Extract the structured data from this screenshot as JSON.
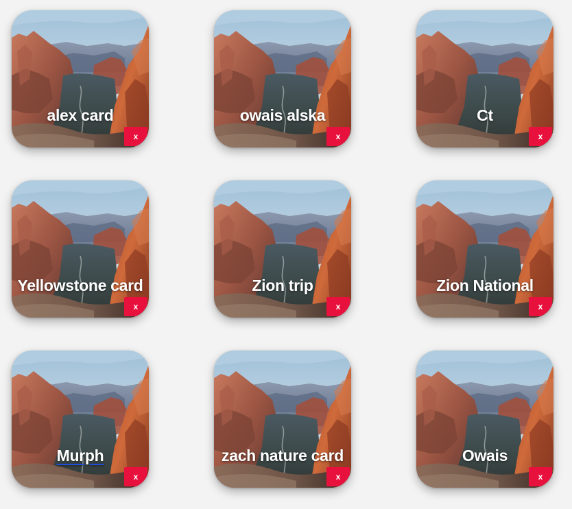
{
  "colors": {
    "background": "#f3f3f3",
    "delete_button": "#e8113d",
    "title_text": "#ffffff",
    "link_underline": "#1f4fd8"
  },
  "cards": [
    {
      "title": "alex card",
      "delete_label": "x",
      "underlined": false
    },
    {
      "title": "owais alska",
      "delete_label": "x",
      "underlined": false
    },
    {
      "title": "Ct",
      "delete_label": "x",
      "underlined": false
    },
    {
      "title": "Yellowstone card",
      "delete_label": "x",
      "underlined": false
    },
    {
      "title": "Zion trip",
      "delete_label": "x",
      "underlined": false
    },
    {
      "title": "Zion National",
      "delete_label": "x",
      "underlined": false
    },
    {
      "title": "Murph",
      "delete_label": "x",
      "underlined": true
    },
    {
      "title": "zach nature card",
      "delete_label": "x",
      "underlined": false
    },
    {
      "title": "Owais",
      "delete_label": "x",
      "underlined": false
    }
  ]
}
